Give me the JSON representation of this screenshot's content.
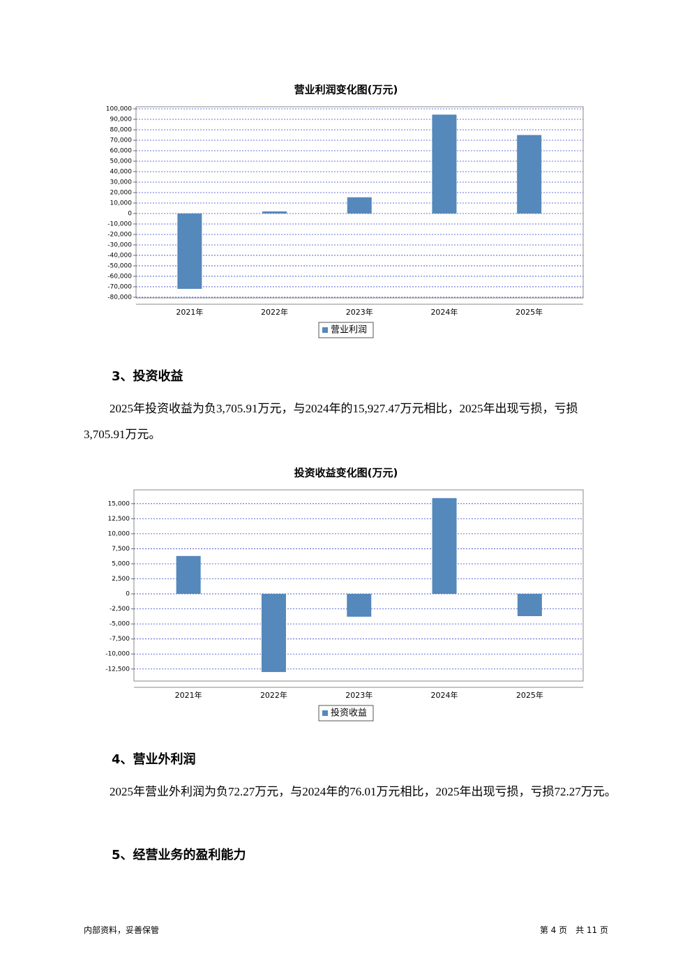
{
  "chart_data": [
    {
      "type": "bar",
      "title": "营业利润变化图(万元)",
      "categories": [
        "2021年",
        "2022年",
        "2023年",
        "2024年",
        "2025年"
      ],
      "series": [
        {
          "name": "营业利润",
          "color": "#5588bb",
          "values": [
            -72000,
            2000,
            15500,
            94500,
            75000
          ]
        }
      ],
      "ylim": [
        -80700,
        102000
      ],
      "yticks": [
        {
          "value": -80000,
          "label": "-80,000"
        },
        {
          "value": -70000,
          "label": "-70,000"
        },
        {
          "value": -60000,
          "label": "-60,000"
        },
        {
          "value": -50000,
          "label": "-50,000"
        },
        {
          "value": -40000,
          "label": "-40,000"
        },
        {
          "value": -30000,
          "label": "-30,000"
        },
        {
          "value": -20000,
          "label": "-20,000"
        },
        {
          "value": -10000,
          "label": "-10,000"
        },
        0,
        {
          "value": 10000,
          "label": "10,000"
        },
        {
          "value": 20000,
          "label": "20,000"
        },
        {
          "value": 30000,
          "label": "30,000"
        },
        {
          "value": 40000,
          "label": "40,000"
        },
        {
          "value": 50000,
          "label": "50,000"
        },
        {
          "value": 60000,
          "label": "60,000"
        },
        {
          "value": 70000,
          "label": "70,000"
        },
        {
          "value": 80000,
          "label": "80,000"
        },
        {
          "value": 90000,
          "label": "90,000"
        },
        {
          "value": 100000,
          "label": "100,000"
        }
      ],
      "grid": true
    },
    {
      "type": "bar",
      "title": "投资收益变化图(万元)",
      "categories": [
        "2021年",
        "2022年",
        "2023年",
        "2024年",
        "2025年"
      ],
      "series": [
        {
          "name": "投资收益",
          "color": "#5588bb",
          "values": [
            6300,
            -13000,
            -3800,
            15927.47,
            -3705.91
          ]
        }
      ],
      "ylim": [
        -14500,
        17300
      ],
      "yticks": [
        {
          "value": -12500,
          "label": "-12,500"
        },
        {
          "value": -10000,
          "label": "-10,000"
        },
        {
          "value": -7500,
          "label": "-7,500"
        },
        {
          "value": -5000,
          "label": "-5,000"
        },
        {
          "value": -2500,
          "label": "-2,500"
        },
        0,
        {
          "value": 2500,
          "label": "2,500"
        },
        {
          "value": 5000,
          "label": "5,000"
        },
        {
          "value": 7500,
          "label": "7,500"
        },
        {
          "value": 10000,
          "label": "10,000"
        },
        {
          "value": 12500,
          "label": "12,500"
        },
        {
          "value": 15000,
          "label": "15,000"
        }
      ],
      "grid": true
    }
  ],
  "sections": [
    {
      "heading": "3、投资收益",
      "paragraph": "2025年投资收益为负3,705.91万元，与2024年的15,927.47万元相比，2025年出现亏损，亏损3,705.91万元。"
    },
    {
      "heading": "4、营业外利润",
      "paragraph": "2025年营业外利润为负72.27万元，与2024年的76.01万元相比，2025年出现亏损，亏损72.27万元。"
    },
    {
      "heading": "5、经营业务的盈利能力"
    }
  ],
  "footer": {
    "left": "内部资料，妥善保管",
    "right": "第 4 页　共 11 页"
  }
}
